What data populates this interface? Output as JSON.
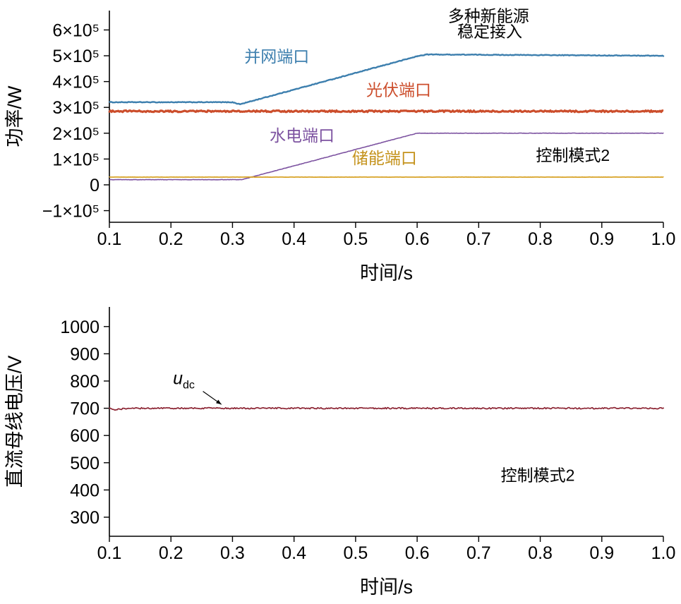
{
  "figure": {
    "background": "#ffffff",
    "text_color": "#000000"
  },
  "chart_data": [
    {
      "id": "power-chart",
      "type": "line",
      "title": "",
      "xlabel": "时间/s",
      "ylabel": "功率/W",
      "xlim": [
        0.1,
        1.0
      ],
      "ylim": [
        -145000,
        675000
      ],
      "xticks": [
        0.1,
        0.2,
        0.3,
        0.4,
        0.5,
        0.6,
        0.7,
        0.8,
        0.9,
        1.0
      ],
      "yticks": [
        {
          "value": -100000,
          "label": "−1×10⁵"
        },
        {
          "value": 0,
          "label": "0"
        },
        {
          "value": 100000,
          "label": "1×10⁵"
        },
        {
          "value": 200000,
          "label": "2×10⁵"
        },
        {
          "value": 300000,
          "label": "3×10⁵"
        },
        {
          "value": 400000,
          "label": "4×10⁵"
        },
        {
          "value": 500000,
          "label": "5×10⁵"
        },
        {
          "value": 600000,
          "label": "6×10⁵"
        }
      ],
      "grid": false,
      "legend": "in-plot text labels",
      "series": [
        {
          "id": "grid-port",
          "name": "并网端口",
          "color": "#3d7fae",
          "width": 2.4,
          "noise": 2600,
          "x": [
            0.1,
            0.3,
            0.312,
            0.6,
            0.615,
            1.0
          ],
          "y": [
            320000,
            320000,
            312000,
            498000,
            505000,
            500000
          ]
        },
        {
          "id": "pv-port",
          "name": "光伏端口",
          "color": "#cc4e2c",
          "width": 3.2,
          "noise": 6000,
          "x": [
            0.1,
            1.0
          ],
          "y": [
            285000,
            285000
          ]
        },
        {
          "id": "hydro-port",
          "name": "水电端口",
          "color": "#7c52a0",
          "width": 1.6,
          "noise": 1300,
          "x": [
            0.1,
            0.315,
            0.6,
            1.0
          ],
          "y": [
            20000,
            20000,
            200000,
            200000
          ]
        },
        {
          "id": "storage-port",
          "name": "储能端口",
          "color": "#d8a327",
          "width": 1.8,
          "noise": 700,
          "x": [
            0.1,
            1.0
          ],
          "y": [
            30000,
            30000
          ]
        }
      ],
      "annotations": [
        {
          "id": "grid-port-label",
          "text": "并网端口",
          "x": 0.372,
          "y": 475000,
          "color": "#3d7fae"
        },
        {
          "id": "pv-port-label",
          "text": "光伏端口",
          "x": 0.57,
          "y": 346000,
          "color": "#cc4e2c"
        },
        {
          "id": "hydro-port-label",
          "text": "水电端口",
          "x": 0.413,
          "y": 169000,
          "color": "#7c52a0"
        },
        {
          "id": "storage-port-label",
          "text": "储能端口",
          "x": 0.547,
          "y": 82000,
          "color": "#c4921b"
        },
        {
          "id": "note-line1",
          "text": "多种新能源",
          "x": 0.716,
          "y": 633000,
          "color": "#000000"
        },
        {
          "id": "note-line2",
          "text": "稳定接入",
          "x": 0.718,
          "y": 572000,
          "color": "#000000"
        },
        {
          "id": "control-mode-label",
          "text": "控制模式2",
          "x": 0.853,
          "y": 93000,
          "color": "#000000"
        }
      ],
      "arrows": []
    },
    {
      "id": "voltage-chart",
      "type": "line",
      "title": "",
      "xlabel": "时间/s",
      "ylabel": "直流母线电压/V",
      "xlim": [
        0.1,
        1.0
      ],
      "ylim": [
        230,
        1072
      ],
      "xticks": [
        0.1,
        0.2,
        0.3,
        0.4,
        0.5,
        0.6,
        0.7,
        0.8,
        0.9,
        1.0
      ],
      "yticks": [
        {
          "value": 300,
          "label": "300"
        },
        {
          "value": 400,
          "label": "400"
        },
        {
          "value": 500,
          "label": "500"
        },
        {
          "value": 600,
          "label": "600"
        },
        {
          "value": 700,
          "label": "700"
        },
        {
          "value": 800,
          "label": "800"
        },
        {
          "value": 900,
          "label": "900"
        },
        {
          "value": 1000,
          "label": "1000"
        }
      ],
      "grid": false,
      "legend": "in-plot text labels",
      "series": [
        {
          "id": "dc-bus-voltage",
          "name": "udc",
          "color": "#8c2433",
          "width": 1.7,
          "noise": 5,
          "x": [
            0.1,
            0.11,
            0.13,
            1.0
          ],
          "y": [
            700,
            695,
            700,
            700
          ]
        }
      ],
      "annotations": [
        {
          "id": "udc-label",
          "text": "u",
          "sub": "dc",
          "italic": true,
          "x": 0.221,
          "y": 788,
          "color": "#000000"
        },
        {
          "id": "control-mode-label",
          "text": "控制模式2",
          "x": 0.796,
          "y": 433,
          "color": "#000000"
        }
      ],
      "arrows": [
        {
          "x1": 0.252,
          "y1": 762,
          "x2": 0.282,
          "y2": 714
        }
      ]
    }
  ]
}
